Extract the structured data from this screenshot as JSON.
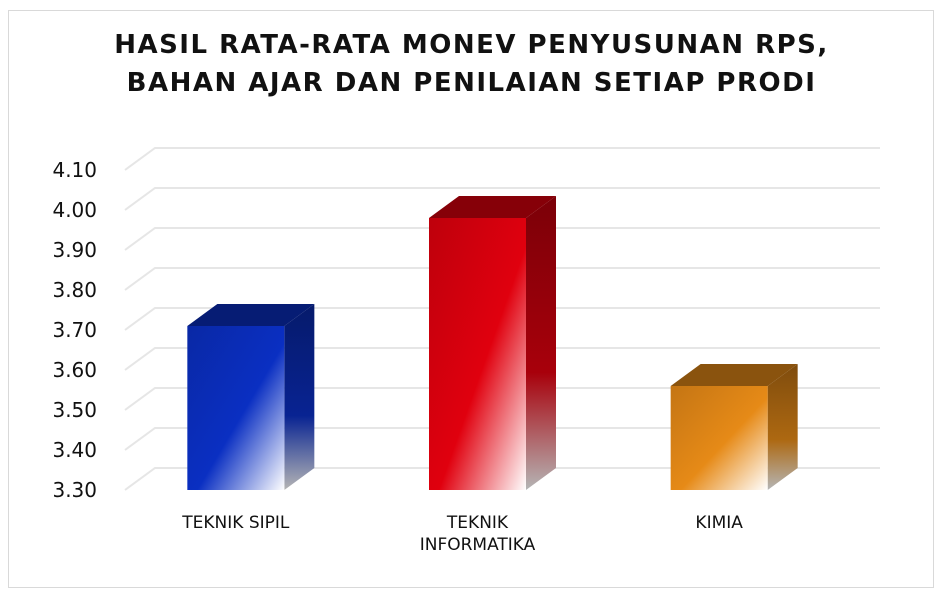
{
  "chart_data": {
    "type": "bar",
    "title_lines": [
      "HASIL RATA-RATA MONEV PENYUSUNAN RPS,",
      "BAHAN AJAR DAN PENILAIAN SETIAP PRODI"
    ],
    "categories": [
      [
        "TEKNIK SIPIL"
      ],
      [
        "TEKNIK",
        "INFORMATIKA"
      ],
      [
        "KIMIA"
      ]
    ],
    "values": [
      3.71,
      3.98,
      3.56
    ],
    "ylim": [
      3.3,
      4.1
    ],
    "yticks": [
      "3.30",
      "3.40",
      "3.50",
      "3.60",
      "3.70",
      "3.80",
      "3.90",
      "4.00",
      "4.10"
    ],
    "grid": true,
    "legend": "none",
    "colors": [
      "#0a2fc2",
      "#e0000e",
      "#e68a17"
    ]
  }
}
